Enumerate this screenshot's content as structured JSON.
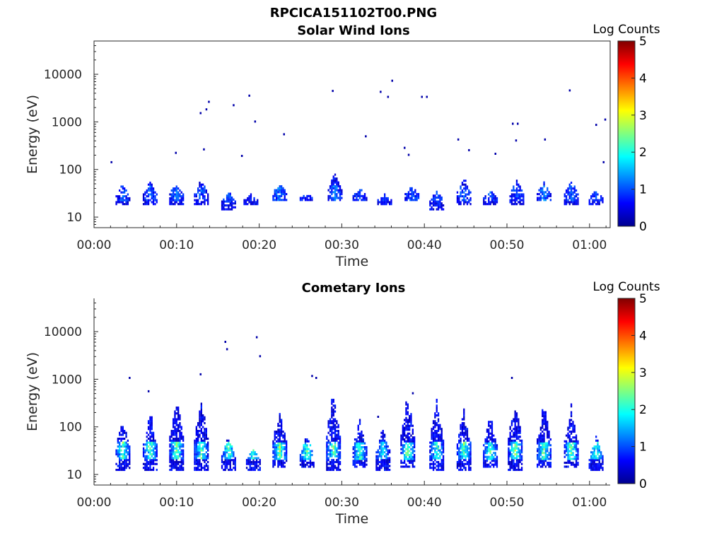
{
  "figure_title": "RPCICA151102T00.PNG",
  "colormap": "jet",
  "chart_data": [
    {
      "type": "heatmap",
      "title": "Solar Wind Ions",
      "xlabel": "Time",
      "ylabel": "Energy (eV)",
      "x_ticks": [
        "00:00",
        "00:10",
        "00:20",
        "00:30",
        "00:40",
        "00:50",
        "01:00"
      ],
      "x_tick_minutes": [
        0,
        10,
        20,
        30,
        40,
        50,
        60
      ],
      "xlim_minutes": [
        0,
        62.5
      ],
      "y_scale": "log",
      "y_ticks": [
        "10",
        "100",
        "1000",
        "10000"
      ],
      "y_tick_values": [
        10,
        100,
        1000,
        10000
      ],
      "ylim": [
        6,
        50000
      ],
      "colorbar": {
        "label": "Log Counts",
        "ticks": [
          "0",
          "1",
          "2",
          "3",
          "4",
          "5"
        ],
        "range": [
          0,
          5
        ]
      },
      "bursts": [
        {
          "t": 3.5,
          "lo": 18,
          "hi": 55,
          "level": 0.15
        },
        {
          "t": 6.8,
          "lo": 18,
          "hi": 60,
          "level": 0.15
        },
        {
          "t": 10.0,
          "lo": 18,
          "hi": 60,
          "level": 0.2
        },
        {
          "t": 13.0,
          "lo": 18,
          "hi": 70,
          "level": 0.15
        },
        {
          "t": 16.3,
          "lo": 14,
          "hi": 40,
          "level": 0.15
        },
        {
          "t": 19.0,
          "lo": 18,
          "hi": 30,
          "level": 0.1
        },
        {
          "t": 22.5,
          "lo": 22,
          "hi": 55,
          "level": 0.2
        },
        {
          "t": 25.8,
          "lo": 22,
          "hi": 30,
          "level": 0.1
        },
        {
          "t": 29.2,
          "lo": 22,
          "hi": 90,
          "level": 0.2
        },
        {
          "t": 32.2,
          "lo": 22,
          "hi": 40,
          "level": 0.15
        },
        {
          "t": 35.2,
          "lo": 18,
          "hi": 30,
          "level": 0.1
        },
        {
          "t": 38.5,
          "lo": 22,
          "hi": 45,
          "level": 0.15
        },
        {
          "t": 41.5,
          "lo": 14,
          "hi": 40,
          "level": 0.15
        },
        {
          "t": 44.8,
          "lo": 18,
          "hi": 75,
          "level": 0.15
        },
        {
          "t": 48.0,
          "lo": 18,
          "hi": 40,
          "level": 0.15
        },
        {
          "t": 51.2,
          "lo": 18,
          "hi": 70,
          "level": 0.15
        },
        {
          "t": 54.5,
          "lo": 22,
          "hi": 55,
          "level": 0.2
        },
        {
          "t": 57.8,
          "lo": 18,
          "hi": 70,
          "level": 0.15
        },
        {
          "t": 60.8,
          "lo": 18,
          "hi": 40,
          "level": 0.15
        }
      ],
      "isolated_points": [
        {
          "t": 2.0,
          "e": 140
        },
        {
          "t": 9.8,
          "e": 220
        },
        {
          "t": 12.8,
          "e": 1500
        },
        {
          "t": 13.5,
          "e": 1800
        },
        {
          "t": 13.8,
          "e": 2600
        },
        {
          "t": 13.2,
          "e": 260
        },
        {
          "t": 16.8,
          "e": 2200
        },
        {
          "t": 17.8,
          "e": 190
        },
        {
          "t": 18.7,
          "e": 3500
        },
        {
          "t": 19.4,
          "e": 1000
        },
        {
          "t": 22.9,
          "e": 540
        },
        {
          "t": 28.8,
          "e": 4400
        },
        {
          "t": 32.8,
          "e": 490
        },
        {
          "t": 34.6,
          "e": 4200
        },
        {
          "t": 35.5,
          "e": 3300
        },
        {
          "t": 36.0,
          "e": 7200
        },
        {
          "t": 39.6,
          "e": 3300
        },
        {
          "t": 40.2,
          "e": 3300
        },
        {
          "t": 44.0,
          "e": 420
        },
        {
          "t": 45.3,
          "e": 250
        },
        {
          "t": 48.5,
          "e": 210
        },
        {
          "t": 50.6,
          "e": 900
        },
        {
          "t": 51.2,
          "e": 900
        },
        {
          "t": 51.0,
          "e": 400
        },
        {
          "t": 54.5,
          "e": 420
        },
        {
          "t": 57.5,
          "e": 4500
        },
        {
          "t": 60.7,
          "e": 850
        },
        {
          "t": 61.8,
          "e": 1100
        },
        {
          "t": 61.6,
          "e": 140
        },
        {
          "t": 37.5,
          "e": 280
        },
        {
          "t": 38.0,
          "e": 200
        }
      ]
    },
    {
      "type": "heatmap",
      "title": "Cometary Ions",
      "xlabel": "Time",
      "ylabel": "Energy (eV)",
      "x_ticks": [
        "00:00",
        "00:10",
        "00:20",
        "00:30",
        "00:40",
        "00:50",
        "01:00"
      ],
      "x_tick_minutes": [
        0,
        10,
        20,
        30,
        40,
        50,
        60
      ],
      "xlim_minutes": [
        0,
        62.5
      ],
      "y_scale": "log",
      "y_ticks": [
        "10",
        "100",
        "1000",
        "10000"
      ],
      "y_tick_values": [
        10,
        100,
        1000,
        10000
      ],
      "ylim": [
        6,
        50000
      ],
      "colorbar": {
        "label": "Log Counts",
        "ticks": [
          "0",
          "1",
          "2",
          "3",
          "4",
          "5"
        ],
        "range": [
          0,
          5
        ]
      },
      "bursts": [
        {
          "t": 3.5,
          "lo": 12,
          "hi": 230,
          "level": 0.4
        },
        {
          "t": 6.8,
          "lo": 12,
          "hi": 260,
          "level": 0.4
        },
        {
          "t": 10.0,
          "lo": 12,
          "hi": 700,
          "level": 0.45
        },
        {
          "t": 13.0,
          "lo": 12,
          "hi": 500,
          "level": 0.4
        },
        {
          "t": 16.3,
          "lo": 12,
          "hi": 80,
          "level": 0.42
        },
        {
          "t": 19.3,
          "lo": 12,
          "hi": 40,
          "level": 0.4
        },
        {
          "t": 22.5,
          "lo": 14,
          "hi": 300,
          "level": 0.45
        },
        {
          "t": 25.8,
          "lo": 14,
          "hi": 70,
          "level": 0.4
        },
        {
          "t": 29.0,
          "lo": 12,
          "hi": 900,
          "level": 0.42
        },
        {
          "t": 32.2,
          "lo": 14,
          "hi": 150,
          "level": 0.4
        },
        {
          "t": 35.0,
          "lo": 12,
          "hi": 120,
          "level": 0.3
        },
        {
          "t": 38.0,
          "lo": 14,
          "hi": 550,
          "level": 0.45
        },
        {
          "t": 41.5,
          "lo": 12,
          "hi": 500,
          "level": 0.42
        },
        {
          "t": 44.8,
          "lo": 12,
          "hi": 300,
          "level": 0.42
        },
        {
          "t": 48.0,
          "lo": 14,
          "hi": 200,
          "level": 0.4
        },
        {
          "t": 51.0,
          "lo": 12,
          "hi": 550,
          "level": 0.45
        },
        {
          "t": 54.5,
          "lo": 14,
          "hi": 400,
          "level": 0.42
        },
        {
          "t": 57.8,
          "lo": 14,
          "hi": 300,
          "level": 0.42
        },
        {
          "t": 60.8,
          "lo": 12,
          "hi": 70,
          "level": 0.4
        }
      ],
      "isolated_points": [
        {
          "t": 4.2,
          "e": 1050
        },
        {
          "t": 6.5,
          "e": 550
        },
        {
          "t": 12.8,
          "e": 1250
        },
        {
          "t": 15.8,
          "e": 6000
        },
        {
          "t": 16.0,
          "e": 4200
        },
        {
          "t": 19.6,
          "e": 7500
        },
        {
          "t": 20.0,
          "e": 3000
        },
        {
          "t": 26.3,
          "e": 1150
        },
        {
          "t": 26.8,
          "e": 1050
        },
        {
          "t": 50.5,
          "e": 1050
        },
        {
          "t": 38.5,
          "e": 500
        },
        {
          "t": 34.3,
          "e": 160
        }
      ]
    }
  ]
}
